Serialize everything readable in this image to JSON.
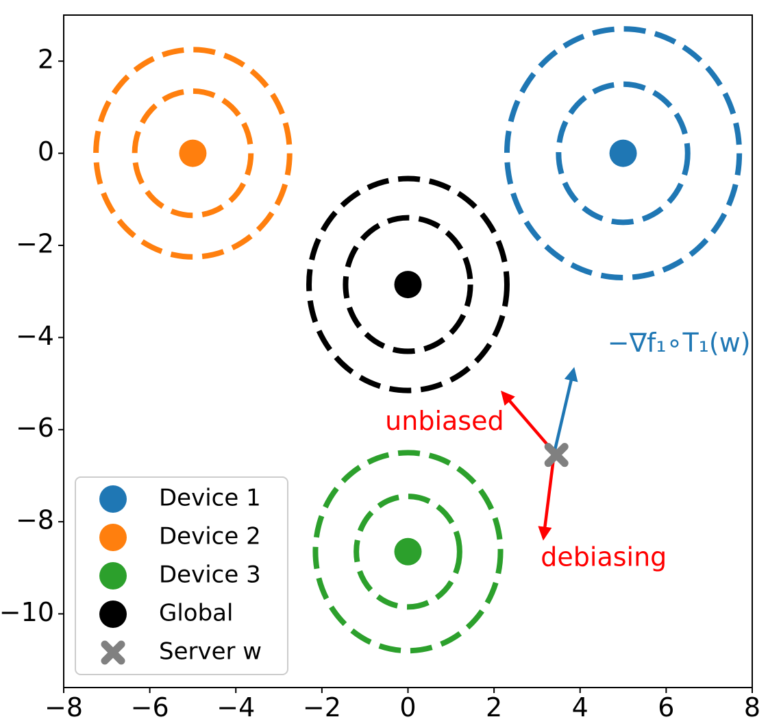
{
  "chart_data": {
    "type": "scatter",
    "title": "",
    "xlabel": "",
    "ylabel": "",
    "xlim": [
      -8,
      8
    ],
    "ylim": [
      -11.6,
      3.0
    ],
    "xticks": [
      -8,
      -6,
      -4,
      -2,
      0,
      2,
      4,
      6,
      8
    ],
    "xtick_labels": [
      "−8",
      "−6",
      "−4",
      "−2",
      "0",
      "2",
      "4",
      "6",
      "8"
    ],
    "yticks": [
      2,
      0,
      -2,
      -4,
      -6,
      -8,
      -10
    ],
    "ytick_labels": [
      "2",
      "0",
      "−2",
      "−4",
      "−6",
      "−8",
      "−10"
    ],
    "grid": false,
    "legend_position": "lower-left",
    "series": [
      {
        "name": "Device 1",
        "color": "#1f77b4",
        "marker": "circle",
        "x": 5.0,
        "y": 0.0,
        "circle_radii": [
          1.5,
          2.7
        ]
      },
      {
        "name": "Device 2",
        "color": "#ff7f0e",
        "marker": "circle",
        "x": -5.0,
        "y": 0.0,
        "circle_radii": [
          1.35,
          2.25
        ]
      },
      {
        "name": "Device 3",
        "color": "#2ca02c",
        "marker": "circle",
        "x": 0.0,
        "y": -8.65,
        "circle_radii": [
          1.2,
          2.15
        ]
      },
      {
        "name": "Global",
        "color": "#000000",
        "marker": "circle",
        "x": 0.0,
        "y": -2.85,
        "circle_radii": [
          1.45,
          2.3
        ]
      },
      {
        "name": "Server w",
        "color": "#808080",
        "marker": "x",
        "x": 3.45,
        "y": -6.55
      }
    ],
    "arrows": [
      {
        "from": [
          3.4,
          -6.5
        ],
        "to": [
          3.85,
          -4.7
        ],
        "color": "#1f77b4"
      },
      {
        "from": [
          3.4,
          -6.5
        ],
        "to": [
          2.2,
          -5.2
        ],
        "color": "#ff0000"
      },
      {
        "from": [
          3.4,
          -6.5
        ],
        "to": [
          3.15,
          -8.35
        ],
        "color": "#ff0000"
      }
    ],
    "annotations": [
      {
        "text": "−∇f₁∘T₁(w)",
        "x": 6.3,
        "y": -4.15,
        "color": "#1f77b4"
      },
      {
        "text": "unbiased",
        "x": 0.85,
        "y": -5.85,
        "color": "#ff0000"
      },
      {
        "text": "debiasing",
        "x": 4.55,
        "y": -8.8,
        "color": "#ff0000"
      }
    ]
  }
}
